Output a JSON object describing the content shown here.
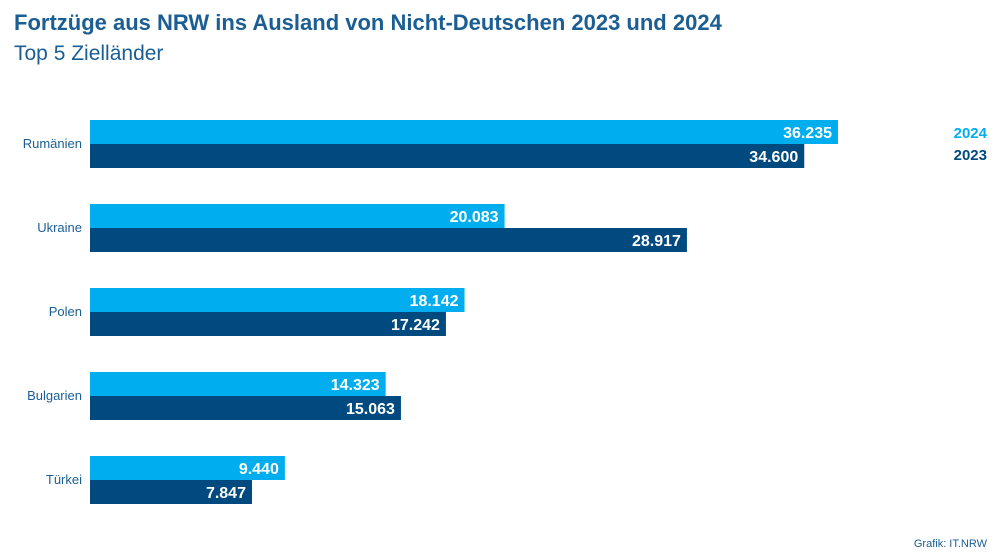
{
  "chart_data": {
    "type": "bar",
    "orientation": "horizontal",
    "title": "Fortzüge aus NRW ins Ausland von Nicht-Deutschen 2023 und 2024",
    "subtitle": "Top 5 Zielländer",
    "categories": [
      "Rumänien",
      "Ukraine",
      "Polen",
      "Bulgarien",
      "Türkei"
    ],
    "series": [
      {
        "name": "2024",
        "color": "#00aeef",
        "values": [
          36235,
          20083,
          18142,
          14323,
          9440
        ],
        "labels": [
          "36.235",
          "20.083",
          "18.142",
          "14.323",
          "9.440"
        ]
      },
      {
        "name": "2023",
        "color": "#004a7f",
        "values": [
          34600,
          28917,
          17242,
          15063,
          7847
        ],
        "labels": [
          "34.600",
          "28.917",
          "17.242",
          "15.063",
          "7.847"
        ]
      }
    ],
    "xlim": [
      0,
      36235
    ],
    "grid": false,
    "legend": "top-right",
    "source": "Grafik: IT.NRW"
  }
}
